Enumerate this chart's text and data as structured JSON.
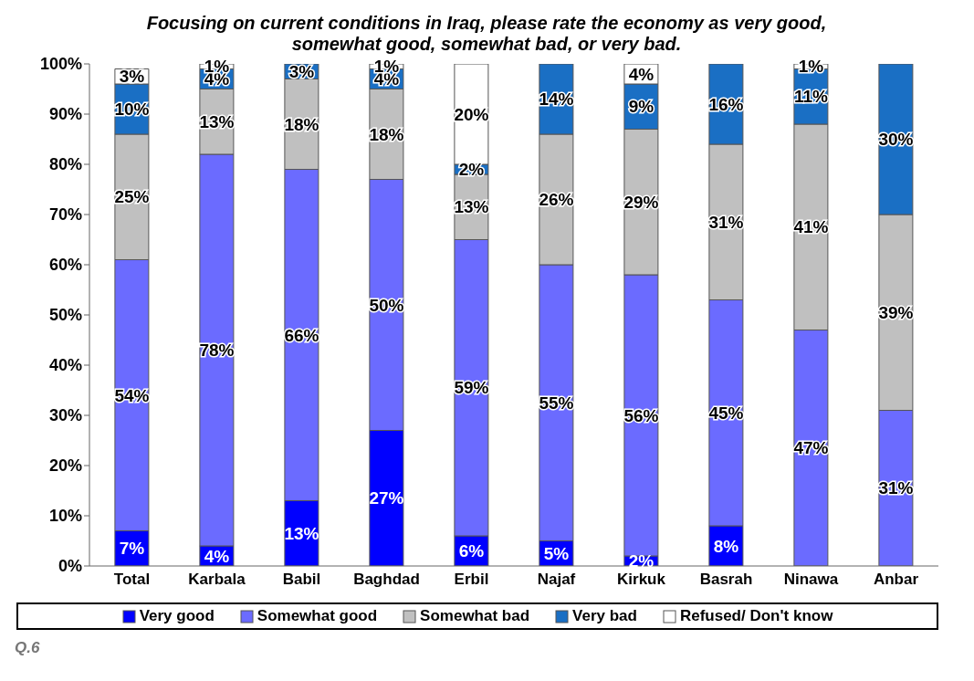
{
  "chart_data": {
    "type": "bar",
    "stacked": true,
    "title": "Focusing on current conditions in Iraq, please rate the economy as very good, somewhat good, somewhat bad, or very bad.",
    "categories": [
      "Total",
      "Karbala",
      "Babil",
      "Baghdad",
      "Erbil",
      "Najaf",
      "Kirkuk",
      "Basrah",
      "Ninawa",
      "Anbar"
    ],
    "series": [
      {
        "name": "Very good",
        "color": "#0000ff",
        "values": [
          7,
          4,
          13,
          27,
          6,
          5,
          2,
          8,
          null,
          null
        ],
        "value_labels": [
          "7%",
          "4%",
          "13%",
          "27%",
          "6%",
          "5%",
          "2%",
          "8%",
          null,
          null
        ]
      },
      {
        "name": "Somewhat good",
        "color": "#6b6bff",
        "values": [
          54,
          78,
          66,
          50,
          59,
          55,
          56,
          45,
          47,
          31
        ],
        "value_labels": [
          "54%",
          "78%",
          "66%",
          "50%",
          "59%",
          "55%",
          "56%",
          "45%",
          "47%",
          "31%"
        ]
      },
      {
        "name": "Somewhat bad",
        "color": "#c0c0c0",
        "values": [
          25,
          13,
          18,
          18,
          13,
          26,
          29,
          31,
          41,
          39
        ],
        "value_labels": [
          "25%",
          "13%",
          "18%",
          "18%",
          "13%",
          "26%",
          "29%",
          "31%",
          "41%",
          "39%"
        ]
      },
      {
        "name": "Very bad",
        "color": "#1a6fc4",
        "values": [
          10,
          4,
          3,
          4,
          2,
          14,
          9,
          16,
          11,
          30
        ],
        "value_labels": [
          "10%",
          "4%",
          "3%",
          "4%",
          "2%",
          "14%",
          "9%",
          "16%",
          "11%",
          "30%"
        ]
      },
      {
        "name": "Refused/ Don't know",
        "color": "#ffffff",
        "values": [
          3,
          1,
          null,
          1,
          20,
          null,
          4,
          null,
          1,
          null
        ],
        "value_labels": [
          "3%",
          "1%",
          null,
          "1%",
          "20%",
          null,
          "4%",
          null,
          "1%",
          null
        ]
      }
    ],
    "ylim": [
      0,
      100
    ],
    "yticks": [
      {
        "value": 0,
        "label": "0%"
      },
      {
        "value": 10,
        "label": "10%"
      },
      {
        "value": 20,
        "label": "20%"
      },
      {
        "value": 30,
        "label": "30%"
      },
      {
        "value": 40,
        "label": "40%"
      },
      {
        "value": 50,
        "label": "50%"
      },
      {
        "value": 60,
        "label": "60%"
      },
      {
        "value": 70,
        "label": "70%"
      },
      {
        "value": 80,
        "label": "80%"
      },
      {
        "value": 90,
        "label": "90%"
      },
      {
        "value": 100,
        "label": "100%"
      }
    ],
    "legend": "bottom",
    "grid": false,
    "annotations": [
      "Q.6"
    ]
  }
}
